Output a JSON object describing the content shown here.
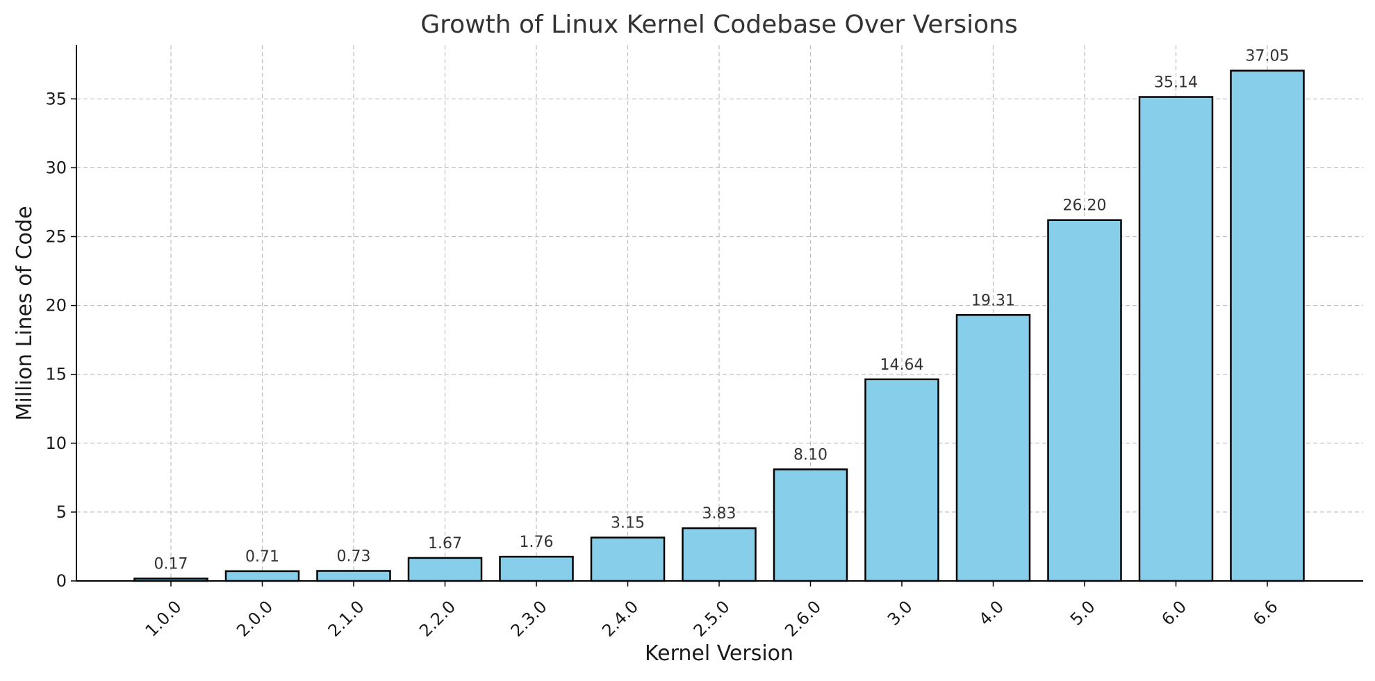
{
  "chart_data": {
    "type": "bar",
    "title": "Growth of Linux Kernel Codebase Over Versions",
    "xlabel": "Kernel Version",
    "ylabel": "Million Lines of Code",
    "categories": [
      "1.0.0",
      "2.0.0",
      "2.1.0",
      "2.2.0",
      "2.3.0",
      "2.4.0",
      "2.5.0",
      "2.6.0",
      "3.0",
      "4.0",
      "5.0",
      "6.0",
      "6.6"
    ],
    "values": [
      0.17,
      0.71,
      0.73,
      1.67,
      1.76,
      3.15,
      3.83,
      8.1,
      14.64,
      19.31,
      26.2,
      35.14,
      37.05
    ],
    "data_labels": [
      "0.17",
      "0.71",
      "0.73",
      "1.67",
      "1.76",
      "3.15",
      "3.83",
      "8.10",
      "14.64",
      "19.31",
      "26.20",
      "35.14",
      "37.05"
    ],
    "yticks": [
      0,
      5,
      10,
      15,
      20,
      25,
      30,
      35
    ],
    "ylim": [
      0,
      38.9
    ],
    "grid": true,
    "legend": "none",
    "bar_color": "#87ceeb",
    "edge_color": "#000000"
  }
}
